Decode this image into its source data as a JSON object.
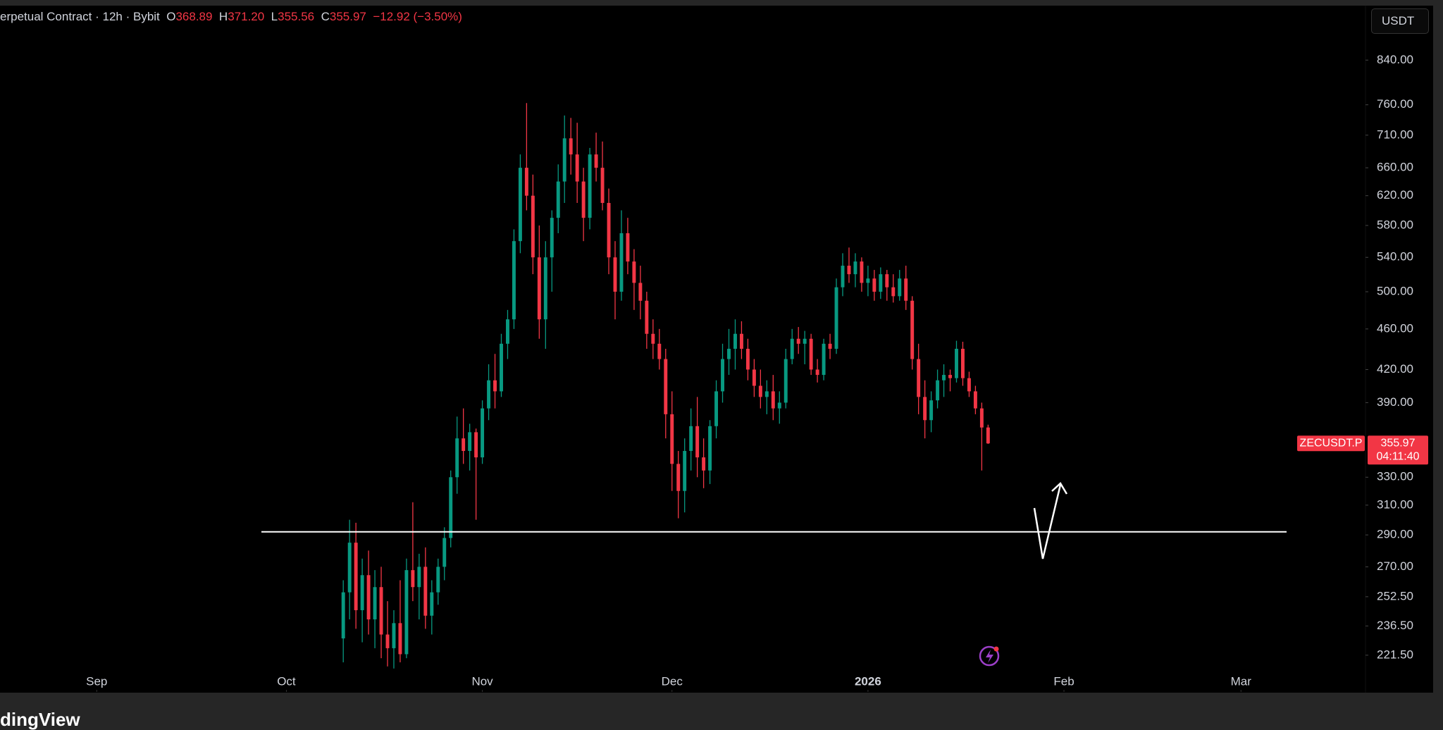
{
  "header": {
    "instrument": "erpetual Contract · 12h · Bybit",
    "open_label": "O",
    "open": "368.89",
    "high_label": "H",
    "high": "371.20",
    "low_label": "L",
    "low": "355.56",
    "close_label": "C",
    "close": "355.97",
    "change": "−12.92 (−3.50%)"
  },
  "currency_button": "USDT",
  "price_tag": {
    "symbol": "ZECUSDT.P",
    "price": "355.97",
    "countdown": "04:11:40"
  },
  "footer": {
    "brand": "dingView"
  },
  "chart_data": {
    "type": "candlestick",
    "log_scale": true,
    "up_color": "#089981",
    "down_color": "#f23645",
    "xlim": [
      -15.3,
      200.7
    ],
    "xticks": [
      {
        "value": 0,
        "label": "Sep"
      },
      {
        "value": 30,
        "label": "Oct"
      },
      {
        "value": 61,
        "label": "Nov"
      },
      {
        "value": 91,
        "label": "Dec"
      },
      {
        "value": 122,
        "label": "2026"
      },
      {
        "value": 153,
        "label": "Feb"
      },
      {
        "value": 181,
        "label": "Mar"
      }
    ],
    "ylim": [
      204,
      946
    ],
    "yticks": [
      {
        "value": 221.5,
        "label": "221.50"
      },
      {
        "value": 236.5,
        "label": "236.50"
      },
      {
        "value": 252.5,
        "label": "252.50"
      },
      {
        "value": 270,
        "label": "270.00"
      },
      {
        "value": 290,
        "label": "290.00"
      },
      {
        "value": 310,
        "label": "310.00"
      },
      {
        "value": 330,
        "label": "330.00"
      },
      {
        "value": 390,
        "label": "390.00"
      },
      {
        "value": 420,
        "label": "420.00"
      },
      {
        "value": 460,
        "label": "460.00"
      },
      {
        "value": 500,
        "label": "500.00"
      },
      {
        "value": 540,
        "label": "540.00"
      },
      {
        "value": 580,
        "label": "580.00"
      },
      {
        "value": 620,
        "label": "620.00"
      },
      {
        "value": 660,
        "label": "660.00"
      },
      {
        "value": 710,
        "label": "710.00"
      },
      {
        "value": 760,
        "label": "760.00"
      },
      {
        "value": 840,
        "label": "840.00"
      }
    ],
    "horizontal_line": {
      "value": 292,
      "color": "#ffffff"
    },
    "x": [
      39,
      40,
      41,
      42,
      43,
      44,
      45,
      46,
      47,
      48,
      49,
      50,
      51,
      52,
      53,
      54,
      55,
      56,
      57,
      58,
      59,
      60,
      61,
      62,
      63,
      64,
      65,
      66,
      67,
      68,
      69,
      70,
      71,
      72,
      73,
      74,
      75,
      76,
      77,
      78,
      79,
      80,
      81,
      82,
      83,
      84,
      85,
      86,
      87,
      88,
      89,
      90,
      91,
      92,
      93,
      94,
      95,
      96,
      97,
      98,
      99,
      100,
      101,
      102,
      103,
      104,
      105,
      106,
      107,
      108,
      109,
      110,
      111,
      112,
      113,
      114,
      115,
      116,
      117,
      118,
      119,
      120,
      121,
      122,
      123,
      124,
      125,
      126,
      127,
      128,
      129,
      130,
      131,
      132,
      133,
      134,
      135,
      136,
      137,
      138,
      139,
      140,
      141
    ],
    "open": [
      230,
      255,
      285,
      245,
      265,
      240,
      258,
      232,
      225,
      238,
      222,
      268,
      258,
      270,
      242,
      255,
      270,
      288,
      330,
      360,
      350,
      365,
      345,
      385,
      410,
      400,
      445,
      470,
      560,
      660,
      620,
      540,
      470,
      540,
      590,
      640,
      705,
      680,
      640,
      590,
      680,
      660,
      610,
      540,
      500,
      570,
      535,
      510,
      490,
      455,
      445,
      430,
      380,
      340,
      320,
      350,
      370,
      345,
      335,
      370,
      400,
      430,
      440,
      455,
      440,
      420,
      405,
      395,
      400,
      385,
      390,
      430,
      450,
      445,
      450,
      420,
      415,
      445,
      440,
      505,
      530,
      520,
      535,
      510,
      515,
      500,
      520,
      505,
      495,
      515,
      490,
      430,
      395,
      375,
      392,
      410,
      415,
      412,
      440,
      412,
      400,
      385,
      368.89
    ],
    "high": [
      262,
      300,
      298,
      275,
      280,
      268,
      270,
      250,
      245,
      262,
      275,
      312,
      278,
      282,
      262,
      275,
      295,
      335,
      378,
      385,
      372,
      368,
      392,
      425,
      435,
      455,
      480,
      575,
      680,
      763,
      650,
      580,
      560,
      600,
      665,
      742,
      738,
      730,
      660,
      690,
      714,
      700,
      630,
      560,
      600,
      590,
      550,
      530,
      500,
      470,
      460,
      440,
      400,
      350,
      360,
      385,
      395,
      360,
      375,
      410,
      445,
      460,
      470,
      468,
      450,
      430,
      420,
      410,
      415,
      400,
      440,
      460,
      462,
      458,
      455,
      430,
      450,
      455,
      515,
      545,
      552,
      545,
      540,
      530,
      525,
      528,
      525,
      520,
      525,
      530,
      495,
      445,
      410,
      400,
      420,
      425,
      420,
      448,
      447,
      418,
      405,
      390,
      371.2
    ],
    "low": [
      218,
      240,
      235,
      228,
      232,
      225,
      220,
      216,
      215,
      218,
      220,
      250,
      240,
      235,
      232,
      248,
      262,
      282,
      318,
      340,
      335,
      300,
      340,
      375,
      385,
      395,
      430,
      460,
      545,
      600,
      520,
      450,
      440,
      500,
      570,
      610,
      650,
      610,
      560,
      575,
      640,
      600,
      520,
      470,
      490,
      520,
      480,
      470,
      440,
      430,
      420,
      360,
      320,
      301,
      305,
      335,
      330,
      322,
      325,
      360,
      390,
      415,
      420,
      430,
      410,
      395,
      385,
      380,
      375,
      372,
      385,
      425,
      435,
      425,
      415,
      408,
      410,
      430,
      435,
      495,
      510,
      505,
      500,
      495,
      490,
      492,
      490,
      488,
      490,
      480,
      420,
      380,
      360,
      365,
      385,
      395,
      400,
      408,
      405,
      395,
      380,
      335,
      355.56
    ],
    "close": [
      255,
      285,
      245,
      265,
      240,
      258,
      232,
      225,
      238,
      222,
      268,
      258,
      270,
      242,
      255,
      270,
      288,
      330,
      360,
      350,
      365,
      345,
      385,
      410,
      400,
      445,
      470,
      560,
      660,
      620,
      540,
      470,
      540,
      590,
      640,
      705,
      680,
      640,
      590,
      680,
      660,
      610,
      540,
      500,
      570,
      535,
      510,
      490,
      455,
      445,
      430,
      380,
      340,
      320,
      350,
      370,
      345,
      335,
      370,
      400,
      430,
      440,
      455,
      440,
      420,
      405,
      395,
      400,
      385,
      390,
      430,
      450,
      445,
      450,
      420,
      415,
      445,
      440,
      505,
      530,
      520,
      535,
      510,
      515,
      500,
      520,
      505,
      495,
      515,
      490,
      430,
      395,
      375,
      392,
      410,
      415,
      412,
      440,
      412,
      400,
      385,
      368.89,
      355.97
    ]
  }
}
